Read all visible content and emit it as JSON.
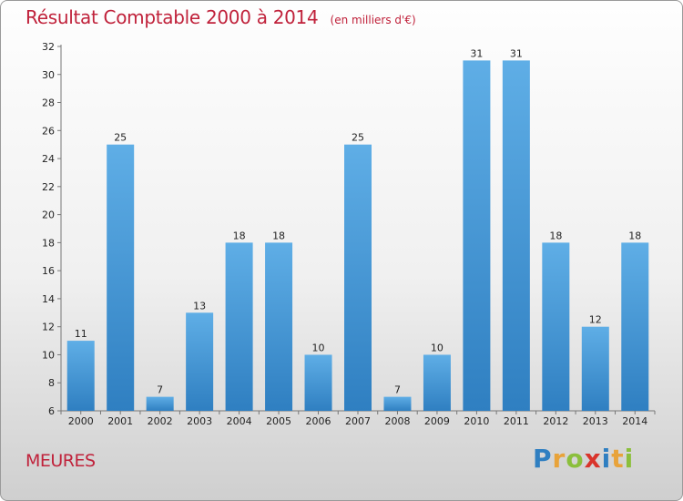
{
  "header": {
    "title": "Résultat Comptable 2000 à 2014",
    "subtitle": "(en milliers d'€)"
  },
  "footer": {
    "commune": "MEURES",
    "logo_text": "Proxiti",
    "logo_letters": [
      {
        "ch": "P",
        "color": "#2f7fc1"
      },
      {
        "ch": "r",
        "color": "#e8a33a"
      },
      {
        "ch": "o",
        "color": "#8bbf3c"
      },
      {
        "ch": "x",
        "color": "#d9342b"
      },
      {
        "ch": "i",
        "color": "#2f7fc1"
      },
      {
        "ch": "t",
        "color": "#e8a33a"
      },
      {
        "ch": "i",
        "color": "#8bbf3c"
      }
    ]
  },
  "chart_data": {
    "type": "bar",
    "title": "Résultat Comptable 2000 à 2014",
    "subtitle": "(en milliers d'€)",
    "xlabel": "",
    "ylabel": "",
    "categories": [
      "2000",
      "2001",
      "2002",
      "2003",
      "2004",
      "2005",
      "2006",
      "2007",
      "2008",
      "2009",
      "2010",
      "2011",
      "2012",
      "2013",
      "2014"
    ],
    "values": [
      11,
      25,
      7,
      13,
      18,
      18,
      10,
      25,
      7,
      10,
      31,
      31,
      18,
      12,
      18
    ],
    "ylim": [
      6,
      32
    ],
    "yticks": [
      6,
      8,
      10,
      12,
      14,
      16,
      18,
      20,
      22,
      24,
      26,
      28,
      30,
      32
    ],
    "grid": false,
    "legend": "none",
    "colors": {
      "bar_light": "#5faee6",
      "bar_dark": "#2f7fc1",
      "title": "#c0223b"
    }
  }
}
